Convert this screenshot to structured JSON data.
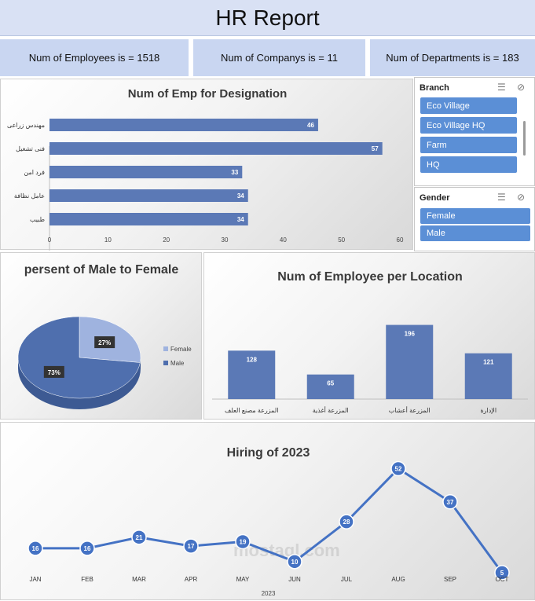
{
  "header": {
    "title": "HR Report"
  },
  "kpis": {
    "employees": "Num of Employees is =  1518",
    "companies": "Num of Companys is = 11",
    "departments": "Num of Departments is =  183"
  },
  "slicers": {
    "branch": {
      "title": "Branch",
      "items": [
        "Eco Village",
        "Eco Village HQ",
        "Farm",
        "HQ"
      ]
    },
    "gender": {
      "title": "Gender",
      "items": [
        "Female",
        "Male"
      ]
    }
  },
  "watermark": {
    "text": "mostaql.com"
  },
  "colors": {
    "bar": "#5b79b6",
    "pie_male": "#4f6fae",
    "pie_female": "#9fb3df",
    "line": "#4472c4",
    "slicer": "#5b8fd6"
  },
  "chart_data": [
    {
      "type": "bar",
      "orientation": "horizontal",
      "title": "Num of Emp for Designation",
      "categories": [
        "مهندس زراعى",
        "فنى تشغيل",
        "فرد امن",
        "عامل نظافة",
        "طبيب"
      ],
      "values": [
        46,
        57,
        33,
        34,
        34
      ],
      "xlim": [
        0,
        60
      ],
      "xticks": [
        "0",
        "10",
        "20",
        "30",
        "40",
        "50",
        "60"
      ]
    },
    {
      "type": "pie",
      "title": "persent of Male to Female",
      "labels": [
        "Female",
        "Male"
      ],
      "values": [
        27,
        73
      ],
      "data_labels": [
        "27%",
        "73%"
      ],
      "legend": "right"
    },
    {
      "type": "bar",
      "title": "Num of Employee per Location",
      "categories": [
        "المزرعة مصنع العلف",
        "المزرعة أغذية",
        "المزرعة أعشاب",
        "الإدارة"
      ],
      "values": [
        128,
        65,
        196,
        121
      ],
      "ylim": [
        0,
        220
      ]
    },
    {
      "type": "line",
      "title": "Hiring of 2023",
      "xlabel": "2023",
      "categories": [
        "JAN",
        "FEB",
        "MAR",
        "APR",
        "MAY",
        "JUN",
        "JUL",
        "AUG",
        "SEP",
        "OCT"
      ],
      "values": [
        16,
        16,
        21,
        17,
        19,
        10,
        28,
        52,
        37,
        5
      ],
      "ylim": [
        0,
        60
      ]
    }
  ]
}
